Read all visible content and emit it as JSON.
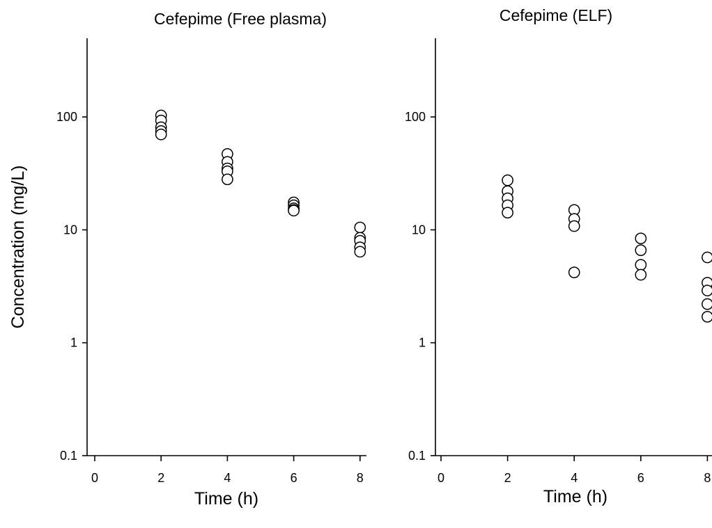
{
  "chart_data": [
    {
      "type": "scatter",
      "title": "Cefepime (Free plasma)",
      "xlabel": "Time (h)",
      "ylabel": "Concentration (mg/L)",
      "xlim": [
        0,
        8
      ],
      "ylim": [
        0.1,
        500
      ],
      "yscale": "log",
      "grid": false,
      "legend": "none",
      "x_ticks": [
        "0",
        "2",
        "4",
        "6",
        "8"
      ],
      "y_ticks": [
        "0.1",
        "1",
        "10",
        "100"
      ],
      "series": [
        {
          "points": [
            {
              "x": 2,
              "y": 103
            },
            {
              "x": 2,
              "y": 93
            },
            {
              "x": 2,
              "y": 81
            },
            {
              "x": 2,
              "y": 75
            },
            {
              "x": 2,
              "y": 70
            },
            {
              "x": 4,
              "y": 47
            },
            {
              "x": 4,
              "y": 40
            },
            {
              "x": 4,
              "y": 35
            },
            {
              "x": 4,
              "y": 33
            },
            {
              "x": 4,
              "y": 28
            },
            {
              "x": 6,
              "y": 17.5
            },
            {
              "x": 6,
              "y": 16.5
            },
            {
              "x": 6,
              "y": 15.5
            },
            {
              "x": 6,
              "y": 15
            },
            {
              "x": 6,
              "y": 14.8
            },
            {
              "x": 8,
              "y": 10.5
            },
            {
              "x": 8,
              "y": 8.5
            },
            {
              "x": 8,
              "y": 8
            },
            {
              "x": 8,
              "y": 7
            },
            {
              "x": 8,
              "y": 6.4
            }
          ]
        }
      ]
    },
    {
      "type": "scatter",
      "title": "Cefepime (ELF)",
      "xlabel": "Time (h)",
      "ylabel": "",
      "xlim": [
        0,
        8
      ],
      "ylim": [
        0.1,
        500
      ],
      "yscale": "log",
      "grid": false,
      "legend": "none",
      "x_ticks": [
        "0",
        "2",
        "4",
        "6",
        "8"
      ],
      "y_ticks": [
        "0.1",
        "1",
        "10",
        "100"
      ],
      "series": [
        {
          "points": [
            {
              "x": 2,
              "y": 27.5
            },
            {
              "x": 2,
              "y": 22
            },
            {
              "x": 2,
              "y": 19
            },
            {
              "x": 2,
              "y": 16.5
            },
            {
              "x": 2,
              "y": 14.2
            },
            {
              "x": 4,
              "y": 15
            },
            {
              "x": 4,
              "y": 12.5
            },
            {
              "x": 4,
              "y": 10.8
            },
            {
              "x": 4,
              "y": 4.2
            },
            {
              "x": 6,
              "y": 8.4
            },
            {
              "x": 6,
              "y": 6.6
            },
            {
              "x": 6,
              "y": 4.9
            },
            {
              "x": 6,
              "y": 4
            },
            {
              "x": 8,
              "y": 5.7
            },
            {
              "x": 8,
              "y": 3.4
            },
            {
              "x": 8,
              "y": 2.9
            },
            {
              "x": 8,
              "y": 2.2
            },
            {
              "x": 8,
              "y": 1.7
            }
          ]
        }
      ]
    }
  ]
}
